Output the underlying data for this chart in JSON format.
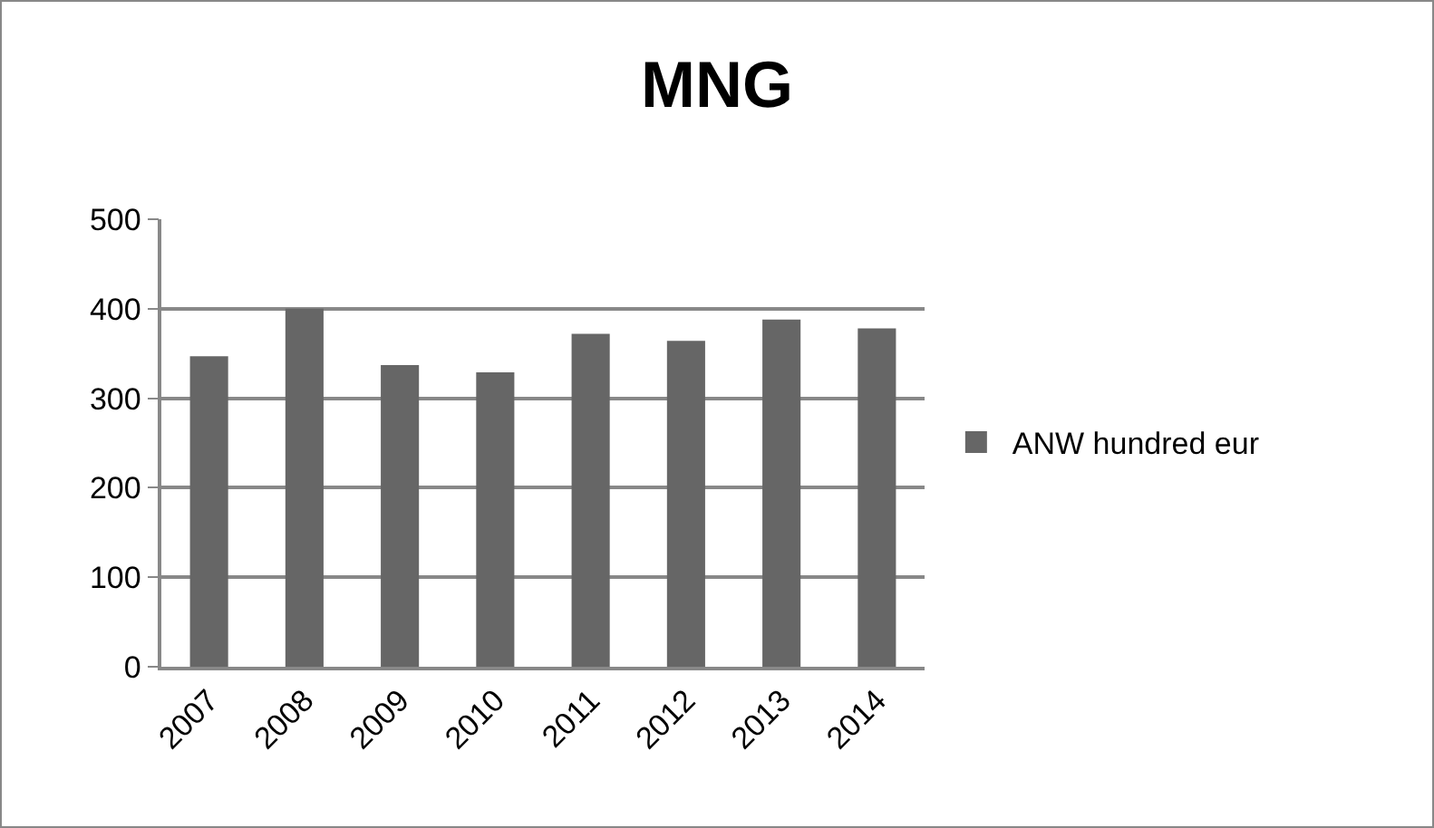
{
  "chart_data": {
    "type": "bar",
    "title": "MNG",
    "categories": [
      "2007",
      "2008",
      "2009",
      "2010",
      "2011",
      "2012",
      "2013",
      "2014"
    ],
    "series": [
      {
        "name": "ANW hundred eur",
        "color": "#666666",
        "values": [
          347,
          400,
          337,
          329,
          372,
          364,
          388,
          378
        ]
      }
    ],
    "ylim": [
      0,
      500
    ],
    "yticks": [
      0,
      100,
      200,
      300,
      400,
      500
    ],
    "grid": "y",
    "legend": "right"
  }
}
